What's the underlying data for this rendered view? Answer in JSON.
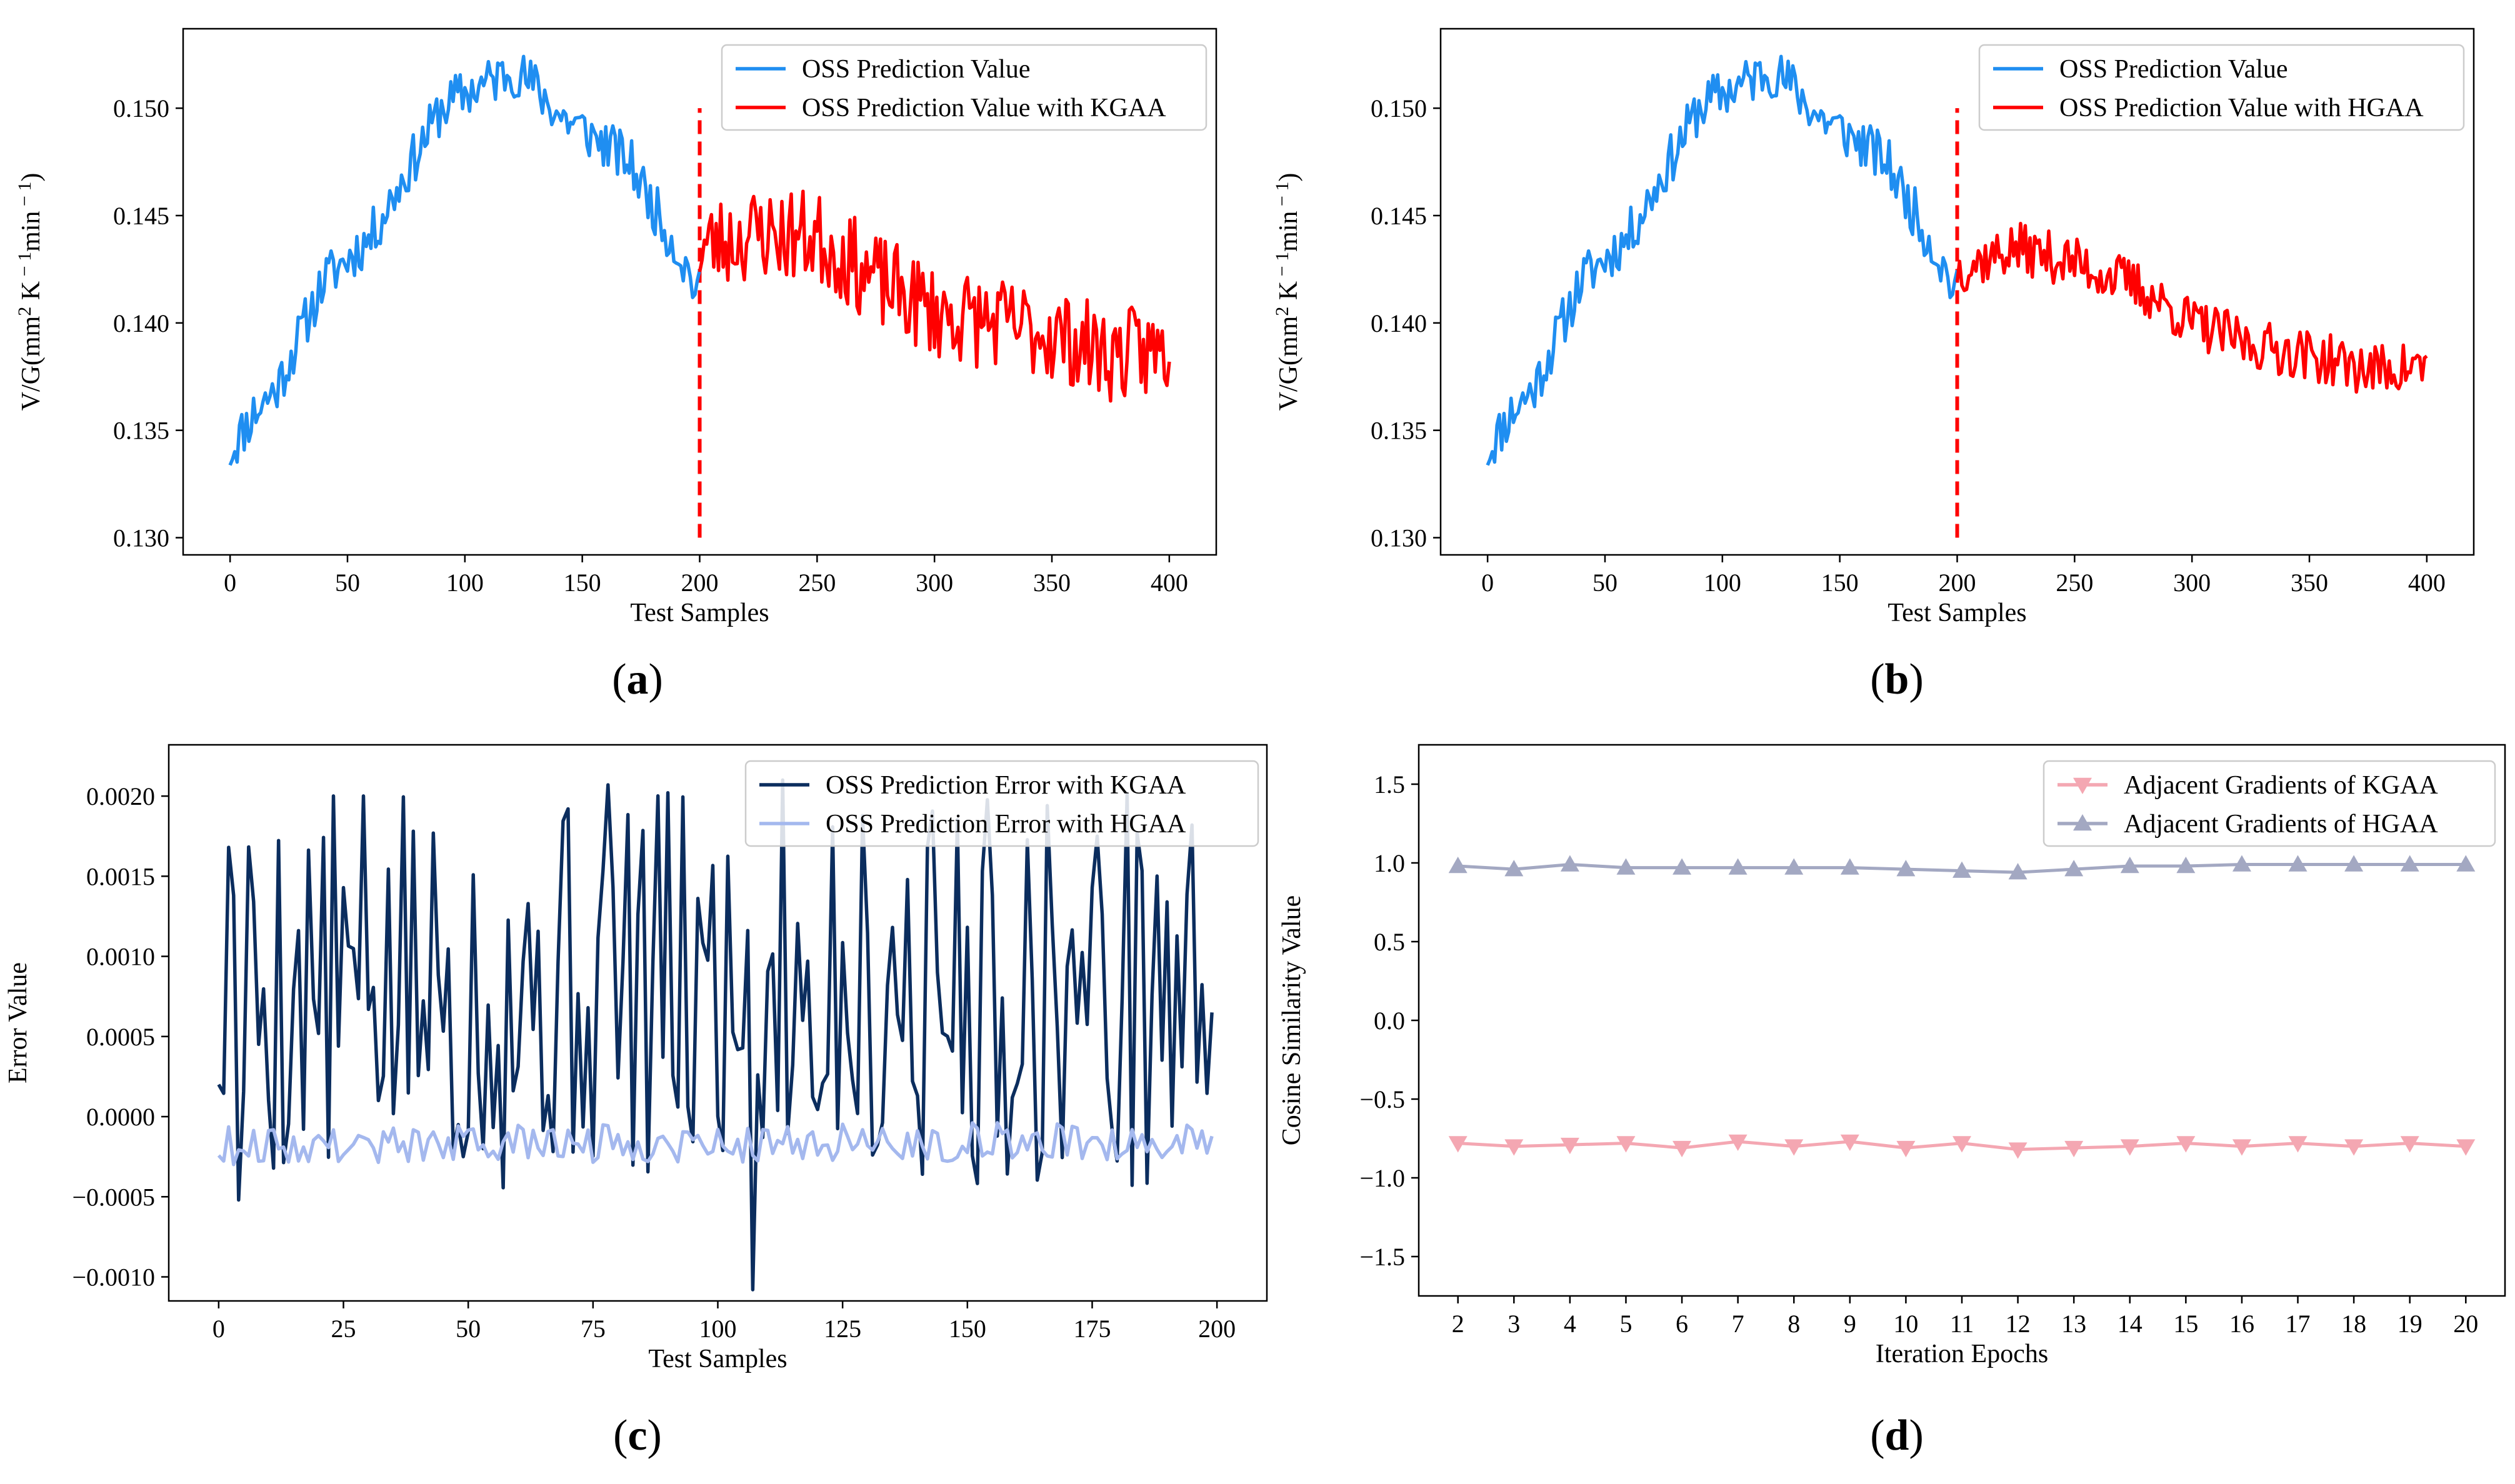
{
  "figure": {
    "panel_labels": [
      "a",
      "b",
      "c",
      "d"
    ]
  },
  "colors": {
    "blue": "#1f8ef1",
    "red": "#ff0000",
    "navy": "#0b2d5e",
    "lightblue": "#a4b8ee",
    "pink": "#f4a7b2",
    "grayblue": "#a3a8c2"
  },
  "chart_data": [
    {
      "id": "a",
      "type": "line",
      "title": "",
      "xlabel": "Test Samples",
      "ylabel_main": "V/G(mm",
      "ylabel_sup1": "2",
      "ylabel_mid": " K",
      "ylabel_sup2": " − 1",
      "ylabel_mid2": "min",
      "ylabel_sup3": " − 1",
      "ylabel_end": ")",
      "xlim": [
        -20,
        420
      ],
      "ylim": [
        0.1292,
        0.1537
      ],
      "xticks": [
        0,
        50,
        100,
        150,
        200,
        250,
        300,
        350,
        400
      ],
      "yticks": [
        0.13,
        0.135,
        0.14,
        0.145,
        0.15
      ],
      "ytick_labels": [
        "0.130",
        "0.135",
        "0.140",
        "0.145",
        "0.150"
      ],
      "legend_position": "top-right",
      "vline": {
        "x": 200,
        "y0": 0.13,
        "y1": 0.15,
        "style": "dashed",
        "color": "red"
      },
      "series": [
        {
          "name": "OSS Prediction Value",
          "color": "blue",
          "x_start": 0,
          "x_end": 200,
          "trend": [
            [
              0,
              0.134
            ],
            [
              10,
              0.1358
            ],
            [
              20,
              0.137
            ],
            [
              30,
              0.1395
            ],
            [
              40,
              0.142
            ],
            [
              50,
              0.143
            ],
            [
              60,
              0.144
            ],
            [
              70,
              0.146
            ],
            [
              80,
              0.148
            ],
            [
              90,
              0.15
            ],
            [
              100,
              0.1507
            ],
            [
              110,
              0.1512
            ],
            [
              120,
              0.1518
            ],
            [
              130,
              0.151
            ],
            [
              140,
              0.1497
            ],
            [
              150,
              0.149
            ],
            [
              160,
              0.1483
            ],
            [
              170,
              0.1475
            ],
            [
              180,
              0.1455
            ],
            [
              190,
              0.1435
            ],
            [
              200,
              0.1413
            ]
          ],
          "noise": 0.0012,
          "seed": 11
        },
        {
          "name": "OSS Prediction Value with KGAA",
          "color": "red",
          "x_start": 200,
          "x_end": 400,
          "trend": [
            [
              200,
              0.1435
            ],
            [
              225,
              0.1442
            ],
            [
              250,
              0.144
            ],
            [
              275,
              0.142
            ],
            [
              300,
              0.1405
            ],
            [
              325,
              0.14
            ],
            [
              350,
              0.1395
            ],
            [
              375,
              0.1385
            ],
            [
              400,
              0.1387
            ]
          ],
          "noise": 0.0022,
          "seed": 23
        }
      ]
    },
    {
      "id": "b",
      "type": "line",
      "title": "",
      "xlabel": "Test Samples",
      "ylabel_main": "V/G(mm",
      "ylabel_sup1": "2",
      "ylabel_mid": " K",
      "ylabel_sup2": " − 1",
      "ylabel_mid2": "min",
      "ylabel_sup3": " − 1",
      "ylabel_end": ")",
      "xlim": [
        -20,
        420
      ],
      "ylim": [
        0.1292,
        0.1537
      ],
      "xticks": [
        0,
        50,
        100,
        150,
        200,
        250,
        300,
        350,
        400
      ],
      "yticks": [
        0.13,
        0.135,
        0.14,
        0.145,
        0.15
      ],
      "ytick_labels": [
        "0.130",
        "0.135",
        "0.140",
        "0.145",
        "0.150"
      ],
      "legend_position": "top-right",
      "vline": {
        "x": 200,
        "y0": 0.13,
        "y1": 0.15,
        "style": "dashed",
        "color": "red"
      },
      "series": [
        {
          "name": "OSS Prediction Value",
          "color": "blue",
          "x_start": 0,
          "x_end": 200,
          "trend": [
            [
              0,
              0.134
            ],
            [
              10,
              0.1358
            ],
            [
              20,
              0.137
            ],
            [
              30,
              0.1395
            ],
            [
              40,
              0.142
            ],
            [
              50,
              0.143
            ],
            [
              60,
              0.144
            ],
            [
              70,
              0.146
            ],
            [
              80,
              0.148
            ],
            [
              90,
              0.15
            ],
            [
              100,
              0.1507
            ],
            [
              110,
              0.1512
            ],
            [
              120,
              0.1518
            ],
            [
              130,
              0.151
            ],
            [
              140,
              0.1497
            ],
            [
              150,
              0.149
            ],
            [
              160,
              0.1483
            ],
            [
              170,
              0.1475
            ],
            [
              180,
              0.1455
            ],
            [
              190,
              0.1435
            ],
            [
              200,
              0.1413
            ]
          ],
          "noise": 0.0012,
          "seed": 11
        },
        {
          "name": "OSS Prediction Value with HGAA",
          "color": "red",
          "x_start": 200,
          "x_end": 400,
          "trend": [
            [
              200,
              0.1425
            ],
            [
              225,
              0.1435
            ],
            [
              250,
              0.1428
            ],
            [
              275,
              0.1418
            ],
            [
              300,
              0.14
            ],
            [
              325,
              0.139
            ],
            [
              350,
              0.1385
            ],
            [
              375,
              0.1378
            ],
            [
              400,
              0.138
            ]
          ],
          "noise": 0.0012,
          "seed": 37
        }
      ]
    },
    {
      "id": "c",
      "type": "line",
      "title": "",
      "xlabel": "Test Samples",
      "ylabel": "Error Value",
      "xlim": [
        -10,
        210
      ],
      "ylim": [
        -0.00115,
        0.00232
      ],
      "xticks": [
        0,
        25,
        50,
        75,
        100,
        125,
        150,
        175,
        200
      ],
      "yticks": [
        -0.001,
        -0.0005,
        0.0,
        0.0005,
        0.001,
        0.0015,
        0.002
      ],
      "ytick_labels": [
        "−0.0010",
        "−0.0005",
        "0.0000",
        "0.0005",
        "0.0010",
        "0.0015",
        "0.0020"
      ],
      "legend_position": "top-right",
      "series": [
        {
          "name": "OSS Prediction Error with KGAA",
          "color": "navy",
          "x_start": 0,
          "x_end": 199,
          "trend": [
            [
              0,
              0.0008
            ],
            [
              200,
              0.0008
            ]
          ],
          "noise": 0.00125,
          "seed": 5,
          "clip": [
            -0.00108,
            0.00215
          ],
          "fixed": [
            [
              0,
              0.0002
            ],
            [
              2,
              0.00168
            ],
            [
              4,
              -0.00052
            ],
            [
              107,
              -0.00108
            ],
            [
              113,
              0.0021
            ],
            [
              78,
              0.00207
            ],
            [
              199,
              0.00065
            ]
          ]
        },
        {
          "name": "OSS Prediction Error with HGAA",
          "color": "lightblue",
          "x_start": 0,
          "x_end": 199,
          "trend": [
            [
              0,
              -0.00018
            ],
            [
              200,
              -0.00015
            ]
          ],
          "noise": 0.00012,
          "seed": 9
        }
      ]
    },
    {
      "id": "d",
      "type": "line",
      "title": "",
      "xlabel": "Iteration Epochs",
      "ylabel": "Cosine Similarity Value",
      "xlim": [
        1.3,
        20.7
      ],
      "ylim": [
        -1.75,
        1.75
      ],
      "xticks": [
        2,
        3,
        4,
        5,
        6,
        7,
        8,
        9,
        10,
        11,
        12,
        13,
        14,
        15,
        16,
        17,
        18,
        19,
        20
      ],
      "yticks": [
        -1.5,
        -1.0,
        -0.5,
        0.0,
        0.5,
        1.0,
        1.5
      ],
      "ytick_labels": [
        "−1.5",
        "−1.0",
        "−0.5",
        "0.0",
        "0.5",
        "1.0",
        "1.5"
      ],
      "legend_position": "top-right",
      "series": [
        {
          "name": "Adjacent Gradients of KGAA",
          "color": "pink",
          "marker": "triangle-down",
          "x": [
            2,
            3,
            4,
            5,
            6,
            7,
            8,
            9,
            10,
            11,
            12,
            13,
            14,
            15,
            16,
            17,
            18,
            19,
            20
          ],
          "y": [
            -0.78,
            -0.8,
            -0.79,
            -0.78,
            -0.81,
            -0.77,
            -0.8,
            -0.77,
            -0.81,
            -0.78,
            -0.82,
            -0.81,
            -0.8,
            -0.78,
            -0.8,
            -0.78,
            -0.8,
            -0.78,
            -0.8
          ]
        },
        {
          "name": "Adjacent Gradients of HGAA",
          "color": "grayblue",
          "marker": "triangle-up",
          "x": [
            2,
            3,
            4,
            5,
            6,
            7,
            8,
            9,
            10,
            11,
            12,
            13,
            14,
            15,
            16,
            17,
            18,
            19,
            20
          ],
          "y": [
            0.98,
            0.96,
            0.99,
            0.97,
            0.97,
            0.97,
            0.97,
            0.97,
            0.96,
            0.95,
            0.94,
            0.96,
            0.98,
            0.98,
            0.99,
            0.99,
            0.99,
            0.99,
            0.99
          ]
        }
      ]
    }
  ]
}
